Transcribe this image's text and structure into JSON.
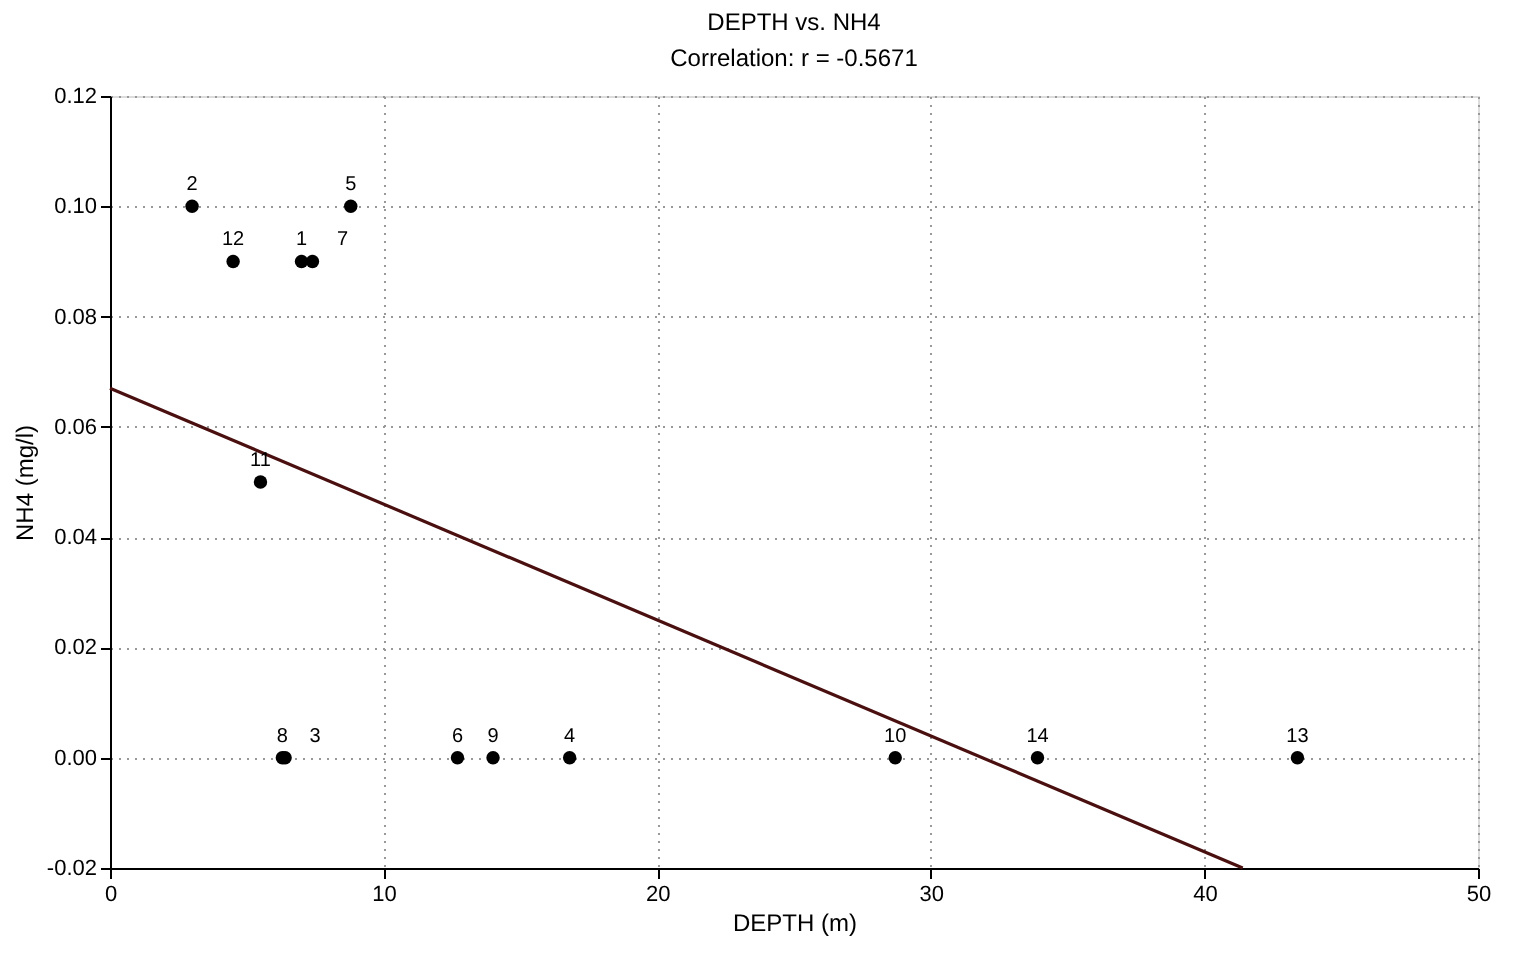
{
  "chart_data": {
    "type": "scatter",
    "title": "DEPTH vs. NH4",
    "subtitle": "Correlation: r = -0.5671",
    "xlabel": "DEPTH (m)",
    "ylabel": "NH4 (mg/l)",
    "xlim": [
      0,
      50
    ],
    "xticks": [
      0,
      10,
      20,
      30,
      40,
      50
    ],
    "ylim": [
      -0.02,
      0.12
    ],
    "yticks": [
      {
        "value": -0.02,
        "label": "-0.02"
      },
      {
        "value": 0,
        "label": "0.00"
      },
      {
        "value": 0.02,
        "label": "0.02"
      },
      {
        "value": 0.04,
        "label": "0.04"
      },
      {
        "value": 0.06,
        "label": "0.06"
      },
      {
        "value": 0.08,
        "label": "0.08"
      },
      {
        "value": 0.1,
        "label": "0.10"
      },
      {
        "value": 0.12,
        "label": "0.12"
      }
    ],
    "grid": true,
    "series": [
      {
        "marker": "circle",
        "color": "#000000",
        "x": [
          7.0,
          3.0,
          6.4,
          16.8,
          8.8,
          12.7,
          7.4,
          6.3,
          14.0,
          28.7,
          5.5,
          4.5,
          43.4,
          33.9
        ],
        "values": [
          0.09,
          0.1,
          0.0,
          0.0,
          0.1,
          0.0,
          0.09,
          0.0,
          0.0,
          0.0,
          0.05,
          0.09,
          0.0,
          0.0
        ]
      },
      {
        "type": "line",
        "color": "#4a0f0f",
        "line_style": "solid",
        "x": [
          0,
          41.4
        ],
        "values": [
          0.067,
          -0.02
        ]
      }
    ],
    "annotations": [
      {
        "text": "1",
        "x": 7.0,
        "y": 0.09
      },
      {
        "text": "7",
        "x": 7.4,
        "y": 0.09
      },
      {
        "text": "2",
        "x": 3.0,
        "y": 0.1
      },
      {
        "text": "8",
        "x": 6.3,
        "y": 0.0
      },
      {
        "text": "3",
        "x": 6.4,
        "y": 0.0
      },
      {
        "text": "4",
        "x": 16.8,
        "y": 0.0
      },
      {
        "text": "5",
        "x": 8.8,
        "y": 0.1
      },
      {
        "text": "6",
        "x": 12.7,
        "y": 0.0
      },
      {
        "text": "9",
        "x": 14.0,
        "y": 0.0
      },
      {
        "text": "10",
        "x": 28.7,
        "y": 0.0
      },
      {
        "text": "11",
        "x": 5.5,
        "y": 0.05
      },
      {
        "text": "12",
        "x": 4.5,
        "y": 0.09
      },
      {
        "text": "13",
        "x": 43.4,
        "y": 0.0
      },
      {
        "text": "14",
        "x": 33.9,
        "y": 0.0
      }
    ]
  }
}
